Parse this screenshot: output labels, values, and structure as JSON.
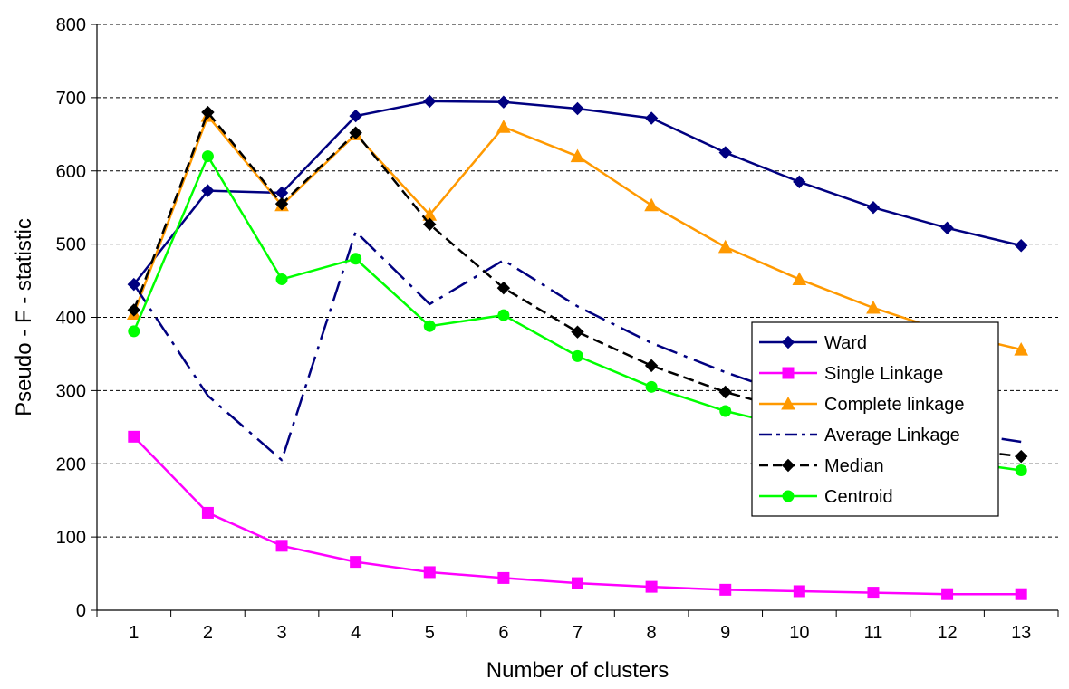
{
  "chart_data": {
    "type": "line",
    "title": "",
    "xlabel": "Number of clusters",
    "ylabel": "Pseudo - F - statistic",
    "x": [
      1,
      2,
      3,
      4,
      5,
      6,
      7,
      8,
      9,
      10,
      11,
      12,
      13
    ],
    "ylim": [
      0,
      800
    ],
    "yticks": [
      0,
      100,
      200,
      300,
      400,
      500,
      600,
      700,
      800
    ],
    "grid": "horizontal-dashed",
    "legend_position": "right",
    "series": [
      {
        "name": "Ward",
        "color": "#000080",
        "marker": "diamond",
        "dash": "solid",
        "values": [
          445,
          573,
          570,
          675,
          695,
          694,
          685,
          672,
          625,
          585,
          550,
          522,
          498
        ]
      },
      {
        "name": "Single Linkage",
        "color": "#ff00ff",
        "marker": "square",
        "dash": "solid",
        "values": [
          237,
          133,
          88,
          66,
          52,
          44,
          37,
          32,
          28,
          26,
          24,
          22,
          22
        ]
      },
      {
        "name": "Complete linkage",
        "color": "#ff9900",
        "marker": "triangle",
        "dash": "solid",
        "values": [
          405,
          675,
          553,
          650,
          540,
          660,
          620,
          553,
          496,
          452,
          413,
          380,
          356
        ]
      },
      {
        "name": "Average Linkage",
        "color": "#000080",
        "marker": "none",
        "dash": "dashdot",
        "values": [
          445,
          293,
          205,
          517,
          418,
          478,
          415,
          365,
          325,
          290,
          262,
          245,
          230
        ]
      },
      {
        "name": "Median",
        "color": "#000000",
        "marker": "diamond",
        "dash": "dash",
        "values": [
          410,
          680,
          555,
          652,
          527,
          440,
          380,
          334,
          298,
          270,
          248,
          222,
          210
        ]
      },
      {
        "name": "Centroid",
        "color": "#00ff00",
        "marker": "circle",
        "dash": "solid",
        "values": [
          381,
          620,
          452,
          480,
          388,
          403,
          347,
          305,
          272,
          248,
          228,
          205,
          191
        ]
      }
    ]
  }
}
